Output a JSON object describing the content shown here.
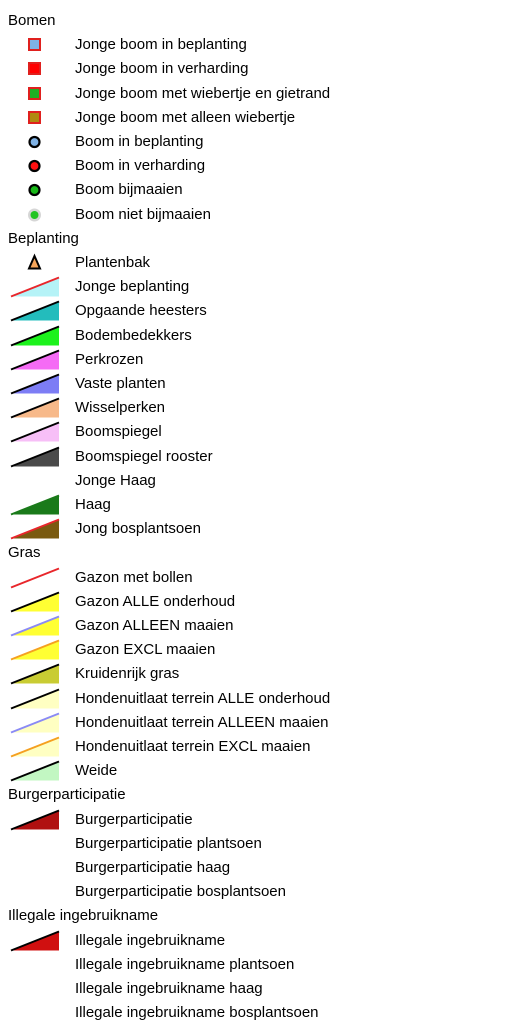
{
  "groups": [
    {
      "title": "Bomen",
      "items": [
        {
          "label": "Jonge boom in beplanting",
          "sym": "sq",
          "fill": "#7fb2e5",
          "stroke": "#e0201e"
        },
        {
          "label": "Jonge boom in verharding",
          "sym": "sq",
          "fill": "#ff0000",
          "stroke": "#e0201e"
        },
        {
          "label": "Jonge boom met wiebertje en gietrand",
          "sym": "sq",
          "fill": "#1fae23",
          "stroke": "#e0201e"
        },
        {
          "label": "Jonge boom met alleen wiebertje",
          "sym": "sq",
          "fill": "#b08a10",
          "stroke": "#e0201e"
        },
        {
          "label": "Boom in beplanting",
          "sym": "circle",
          "fill": "#7fb2e5",
          "stroke": "#000000"
        },
        {
          "label": "Boom in verharding",
          "sym": "circle",
          "fill": "#ff1010",
          "stroke": "#000000"
        },
        {
          "label": "Boom bijmaaien",
          "sym": "circle",
          "fill": "#18b818",
          "stroke": "#000000"
        },
        {
          "label": "Boom niet bijmaaien",
          "sym": "circle",
          "fill": "#22c422",
          "stroke": "#cfcfcf"
        }
      ]
    },
    {
      "title": "Beplanting",
      "items": [
        {
          "label": "Plantenbak",
          "sym": "tri",
          "fill": "#f5a55a",
          "stroke": "#000000"
        },
        {
          "label": "Jonge beplanting",
          "sym": "wedge",
          "fill": "#b5f3f7",
          "stroke": "#e8262b"
        },
        {
          "label": "Opgaande heesters",
          "sym": "wedge",
          "fill": "#23bcbc",
          "stroke": "#000000"
        },
        {
          "label": "Bodembedekkers",
          "sym": "wedge",
          "fill": "#1cf21c",
          "stroke": "#000000"
        },
        {
          "label": "Perkrozen",
          "sym": "wedge",
          "fill": "#f56bf5",
          "stroke": "#000000"
        },
        {
          "label": "Vaste planten",
          "sym": "wedge",
          "fill": "#7d7df5",
          "stroke": "#000000"
        },
        {
          "label": "Wisselperken",
          "sym": "wedge",
          "fill": "#f7b98a",
          "stroke": "#000000"
        },
        {
          "label": "Boomspiegel",
          "sym": "wedge",
          "fill": "#f7bff7",
          "stroke": "#000000"
        },
        {
          "label": "Boomspiegel rooster",
          "sym": "wedge",
          "fill": "#4a4a4a",
          "stroke": "#000000"
        },
        {
          "label": "Jonge Haag",
          "sym": "none"
        },
        {
          "label": "Haag",
          "sym": "wedge",
          "fill": "#1a7a1a",
          "stroke": "#1a7a1a"
        },
        {
          "label": "Jong bosplantsoen",
          "sym": "wedge",
          "fill": "#7a5a10",
          "stroke": "#e8262b"
        }
      ]
    },
    {
      "title": "Gras",
      "items": [
        {
          "label": "Gazon met bollen",
          "sym": "wedge",
          "fill": "#ffffff",
          "stroke": "#e8262b"
        },
        {
          "label": "Gazon ALLE onderhoud",
          "sym": "wedge",
          "fill": "#ffff33",
          "stroke": "#000000"
        },
        {
          "label": "Gazon ALLEEN maaien",
          "sym": "wedge",
          "fill": "#ffff33",
          "stroke": "#8a8af5"
        },
        {
          "label": "Gazon EXCL maaien",
          "sym": "wedge",
          "fill": "#ffff33",
          "stroke": "#f5a020"
        },
        {
          "label": "Kruidenrijk gras",
          "sym": "wedge",
          "fill": "#c9cc33",
          "stroke": "#000000"
        },
        {
          "label": "Hondenuitlaat terrein ALLE onderhoud",
          "sym": "wedge",
          "fill": "#ffffc2",
          "stroke": "#000000"
        },
        {
          "label": "Hondenuitlaat terrein ALLEEN maaien",
          "sym": "wedge",
          "fill": "#ffffc2",
          "stroke": "#8a8af5"
        },
        {
          "label": "Hondenuitlaat terrein EXCL maaien",
          "sym": "wedge",
          "fill": "#ffffc2",
          "stroke": "#f5a020"
        },
        {
          "label": "Weide",
          "sym": "wedge",
          "fill": "#c2f7c2",
          "stroke": "#000000"
        }
      ]
    },
    {
      "title": "Burgerparticipatie",
      "items": [
        {
          "label": "Burgerparticipatie",
          "sym": "wedge",
          "fill": "#b01010",
          "stroke": "#000000"
        },
        {
          "label": "Burgerparticipatie plantsoen",
          "sym": "none"
        },
        {
          "label": "Burgerparticipatie haag",
          "sym": "none"
        },
        {
          "label": "Burgerparticipatie bosplantsoen",
          "sym": "none"
        }
      ]
    },
    {
      "title": "Illegale ingebruikname",
      "items": [
        {
          "label": "Illegale ingebruikname",
          "sym": "wedge",
          "fill": "#d01010",
          "stroke": "#000000"
        },
        {
          "label": "Illegale ingebruikname plantsoen",
          "sym": "none"
        },
        {
          "label": "Illegale ingebruikname haag",
          "sym": "none"
        },
        {
          "label": "Illegale ingebruikname bosplantsoen",
          "sym": "none"
        }
      ]
    }
  ]
}
